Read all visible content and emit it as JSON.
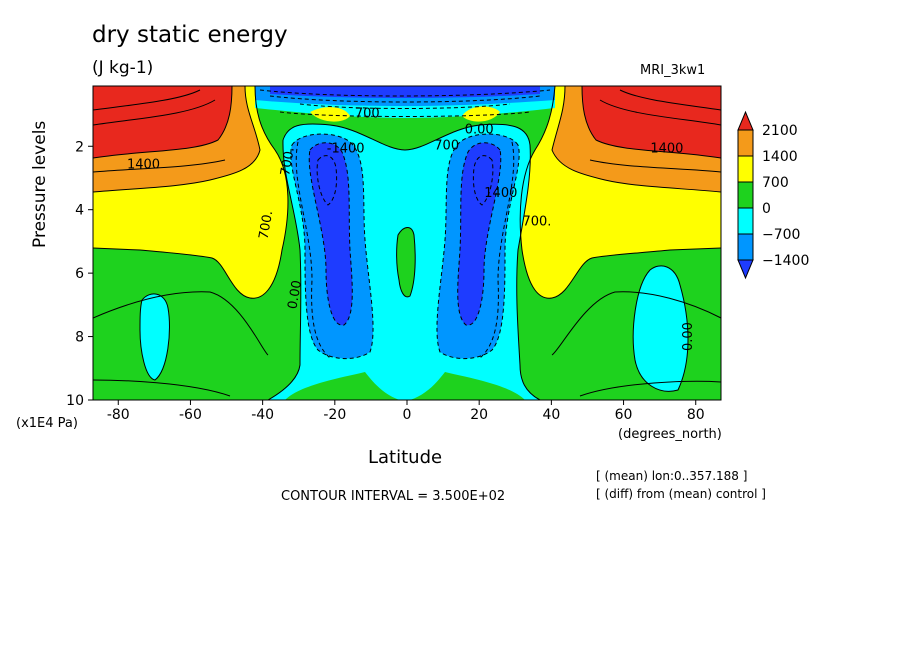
{
  "chart_data": {
    "type": "heatmap",
    "title": "dry static energy",
    "subtitle": "(J kg-1)",
    "model": "MRI_3kw1",
    "xlabel": "Latitude",
    "x_unit": "(degrees_north)",
    "ylabel": "Pressure levels",
    "y_unit": "(x1E4 Pa)",
    "x_ticks": [
      "-80",
      "-60",
      "-40",
      "-20",
      "0",
      "20",
      "40",
      "60",
      "80"
    ],
    "y_ticks": [
      "2",
      "4",
      "6",
      "8",
      "10"
    ],
    "xlim": [
      -87,
      87
    ],
    "ylim": [
      10,
      0.1
    ],
    "y_inverted": true,
    "contour_interval_text": "CONTOUR INTERVAL = 3.500E+02",
    "notes": [
      "[ (mean) lon:0..357.188 ]",
      "[ (diff) from (mean) control ]"
    ],
    "colorbar": {
      "labels": [
        "2100",
        "1400",
        "700",
        "0",
        "−700",
        "−1400"
      ],
      "bins": [
        {
          "range": "> 2100",
          "color": "#e8281e"
        },
        {
          "range": "1400 to 2100",
          "color": "#f49a1a"
        },
        {
          "range": "700 to 1400",
          "color": "#ffff00"
        },
        {
          "range": "0 to 700",
          "color": "#1ed21e"
        },
        {
          "range": "-700 to 0",
          "color": "#00ffff"
        },
        {
          "range": "-1400 to -700",
          "color": "#0096ff"
        },
        {
          "range": "< -1400",
          "color": "#1e3cff"
        }
      ]
    },
    "contour_labels": [
      {
        "text": "1400",
        "lat": -73,
        "p": 2.7
      },
      {
        "text": "-1400",
        "lat": -17,
        "p": 2.2
      },
      {
        "text": "700.",
        "lat": -32,
        "p": 2.5
      },
      {
        "text": "700.",
        "lat": -38,
        "p": 4.5
      },
      {
        "text": "0.00",
        "lat": -30,
        "p": 6.7
      },
      {
        "text": "700",
        "lat": 11,
        "p": 2.1
      },
      {
        "text": "0.00",
        "lat": 20,
        "p": 1.6
      },
      {
        "text": "1400",
        "lat": 26,
        "p": 3.6
      },
      {
        "text": "700.",
        "lat": 36,
        "p": 4.5
      },
      {
        "text": "1400",
        "lat": 72,
        "p": 2.2
      },
      {
        "text": "0.00",
        "lat": 79,
        "p": 8
      },
      {
        "text": "700",
        "lat": -11,
        "p": 1.1
      }
    ]
  }
}
